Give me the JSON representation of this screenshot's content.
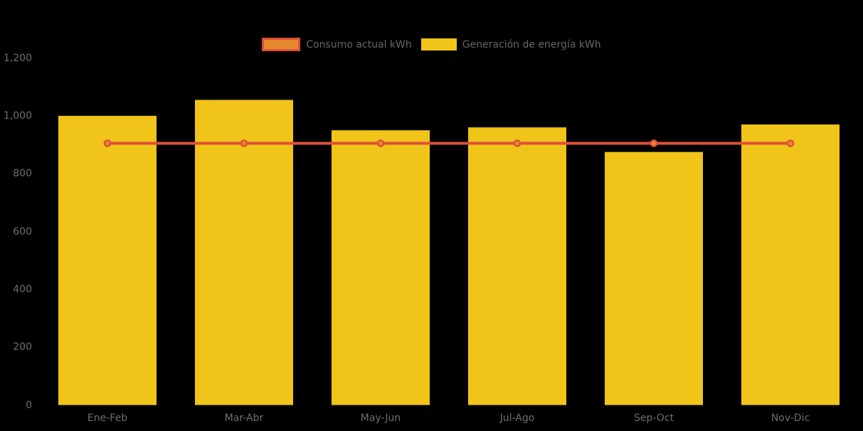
{
  "chart_data": {
    "type": "bar",
    "title": "",
    "xlabel": "",
    "ylabel": "",
    "categories": [
      "Ene-Feb",
      "Mar-Abr",
      "May-Jun",
      "Jul-Ago",
      "Sep-Oct",
      "Nov-Dic"
    ],
    "series": [
      {
        "name": "Consumo actual kWh",
        "type": "line",
        "values": [
          905,
          905,
          905,
          905,
          905,
          905
        ],
        "color": "#E04F39",
        "marker_fill": "#E6882E"
      },
      {
        "name": "Generación de energía kWh",
        "type": "bar",
        "values": [
          1000,
          1055,
          950,
          960,
          875,
          970
        ],
        "color": "#F0C419"
      }
    ],
    "ylim": [
      0,
      1200
    ],
    "yticks": [
      0,
      200,
      400,
      600,
      800,
      1000,
      1200
    ],
    "ytick_labels": [
      "0",
      "200",
      "400",
      "600",
      "800",
      "1,000",
      "1,200"
    ],
    "legend_position": "top",
    "grid": false
  },
  "colors": {
    "background": "#000000",
    "bar": "#F0C419",
    "line": "#E04F39",
    "marker_fill": "#E6882E",
    "axis_text": "#6E6E6E",
    "legend_text": "#666666"
  }
}
